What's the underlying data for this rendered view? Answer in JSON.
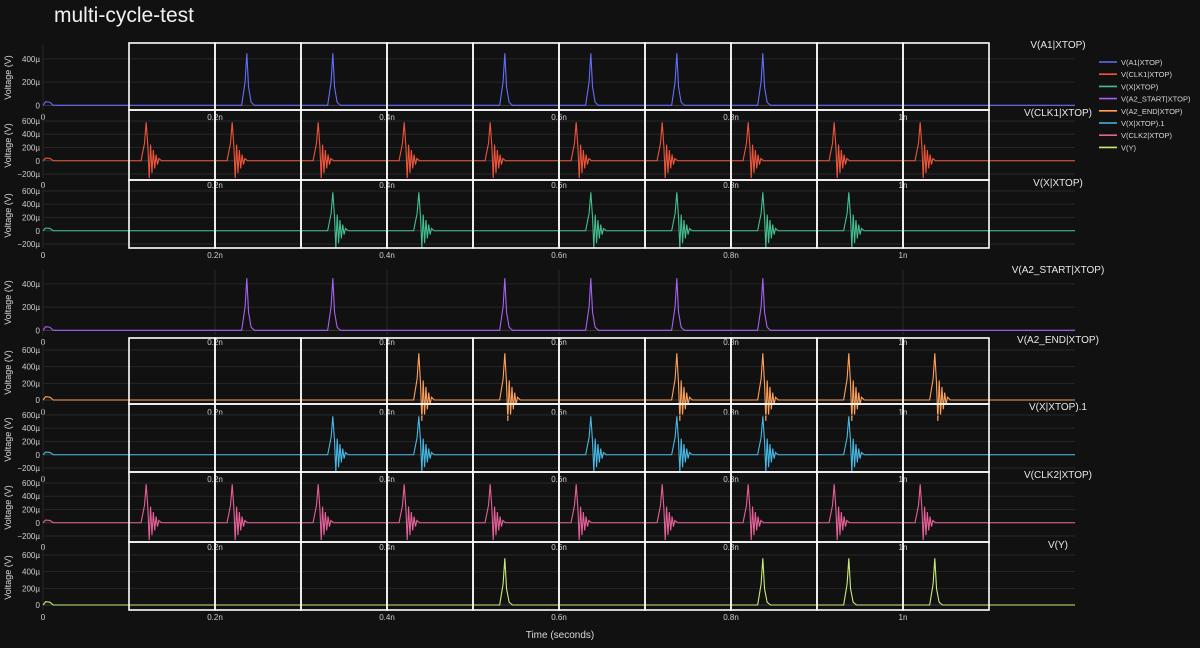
{
  "title": "multi-cycle-test",
  "chart_data": {
    "type": "line",
    "title": "multi-cycle-test",
    "xlabel": "Time (seconds)",
    "x_tick_labels": [
      "0",
      "0.2n",
      "0.4n",
      "0.6n",
      "0.8n",
      "1n"
    ],
    "x_ticks": [
      0,
      0.2,
      0.4,
      0.6,
      0.8,
      1.0
    ],
    "xlim": [
      0,
      1.2
    ],
    "x_unit": "ns",
    "grid": true,
    "legend_placement": "top-right",
    "panels": [
      {
        "name": "V(A1|XTOP)",
        "color": "#636efa",
        "ylabel": "Voltage (V)",
        "y_ticks": [
          0,
          200,
          400
        ],
        "y_tick_labels": [
          "0",
          "200µ",
          "400µ"
        ],
        "ylim": [
          -40,
          520
        ],
        "peak": 450,
        "ring": false,
        "spikes_ns": [
          0.237,
          0.337,
          0.537,
          0.637,
          0.737,
          0.837
        ]
      },
      {
        "name": "V(CLK1|XTOP)",
        "color": "#ef553b",
        "ylabel": "Voltage (V)",
        "y_ticks": [
          -200,
          0,
          200,
          400,
          600
        ],
        "y_tick_labels": [
          "−200µ",
          "0",
          "200µ",
          "400µ",
          "600µ"
        ],
        "ylim": [
          -260,
          720
        ],
        "peak": 580,
        "ring": true,
        "spikes_ns": [
          0.12,
          0.22,
          0.32,
          0.42,
          0.52,
          0.62,
          0.72,
          0.82,
          0.92,
          1.02
        ]
      },
      {
        "name": "V(X|XTOP)",
        "color": "#44c08f",
        "ylabel": "Voltage (V)",
        "y_ticks": [
          -200,
          0,
          200,
          400,
          600
        ],
        "y_tick_labels": [
          "−200µ",
          "0",
          "200µ",
          "400µ",
          "600µ"
        ],
        "ylim": [
          -260,
          720
        ],
        "peak": 580,
        "ring": true,
        "spikes_ns": [
          0.337,
          0.437,
          0.637,
          0.737,
          0.837,
          0.937
        ]
      },
      {
        "name": "V(A2_START|XTOP)",
        "color": "#a463f2",
        "ylabel": "Voltage (V)",
        "y_ticks": [
          0,
          200,
          400
        ],
        "y_tick_labels": [
          "0",
          "200µ",
          "400µ"
        ],
        "ylim": [
          -40,
          520
        ],
        "peak": 450,
        "ring": false,
        "spikes_ns": [
          0.237,
          0.337,
          0.537,
          0.637,
          0.737,
          0.837
        ]
      },
      {
        "name": "V(A2_END|XTOP)",
        "color": "#ffa15a",
        "ylabel": "Voltage (V)",
        "y_ticks": [
          0,
          200,
          400,
          600
        ],
        "y_tick_labels": [
          "0",
          "200µ",
          "400µ",
          "600µ"
        ],
        "ylim": [
          -60,
          720
        ],
        "peak": 560,
        "ring": true,
        "spikes_ns": [
          0.437,
          0.537,
          0.737,
          0.837,
          0.937,
          1.037
        ]
      },
      {
        "name": "V(X|XTOP).1",
        "color": "#47b9e4",
        "ylabel": "Voltage (V)",
        "y_ticks": [
          -200,
          0,
          200,
          400,
          600
        ],
        "y_tick_labels": [
          "−200µ",
          "0",
          "200µ",
          "400µ",
          "600µ"
        ],
        "ylim": [
          -260,
          720
        ],
        "peak": 580,
        "ring": true,
        "spikes_ns": [
          0.337,
          0.437,
          0.637,
          0.737,
          0.837,
          0.937
        ]
      },
      {
        "name": "V(CLK2|XTOP)",
        "color": "#e6609a",
        "ylabel": "Voltage (V)",
        "y_ticks": [
          -200,
          0,
          200,
          400,
          600
        ],
        "y_tick_labels": [
          "−200µ",
          "0",
          "200µ",
          "400µ",
          "600µ"
        ],
        "ylim": [
          -260,
          720
        ],
        "peak": 580,
        "ring": true,
        "spikes_ns": [
          0.12,
          0.22,
          0.32,
          0.42,
          0.52,
          0.62,
          0.72,
          0.82,
          0.92,
          1.02
        ]
      },
      {
        "name": "V(Y)",
        "color": "#c7ea78",
        "ylabel": "Voltage (V)",
        "y_ticks": [
          0,
          200,
          400,
          600
        ],
        "y_tick_labels": [
          "0",
          "200µ",
          "400µ",
          "600µ"
        ],
        "ylim": [
          -60,
          720
        ],
        "peak": 560,
        "ring": false,
        "spikes_ns": [
          0.537,
          0.837,
          0.937,
          1.037
        ]
      }
    ],
    "legend": [
      "V(A1|XTOP)",
      "V(CLK1|XTOP)",
      "V(X|XTOP)",
      "V(A2_START|XTOP)",
      "V(A2_END|XTOP)",
      "V(X|XTOP).1",
      "V(CLK2|XTOP)",
      "V(Y)"
    ],
    "overlay_boxes": {
      "color": "#ffffff",
      "groups": [
        {
          "panels": [
            0,
            2
          ],
          "x_from_ns": 0.1,
          "x_to_ns": 1.1,
          "step_ns": 0.1
        },
        {
          "panels": [
            4,
            7
          ],
          "x_from_ns": 0.1,
          "x_to_ns": 1.1,
          "step_ns": 0.1
        }
      ]
    }
  }
}
